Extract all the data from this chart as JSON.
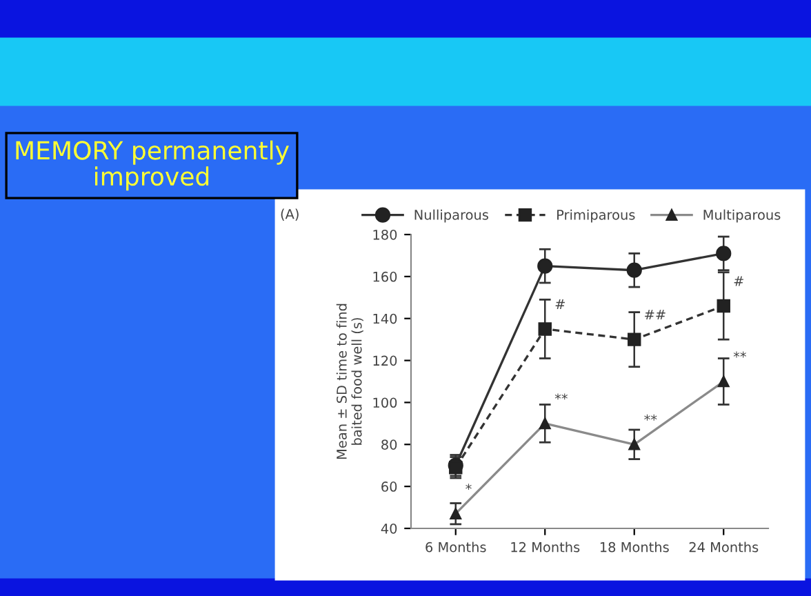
{
  "chart_data": {
    "type": "line",
    "title": "MEMORY permanently improved",
    "ylabel": "Mean ± SD time to find baited food well (s)",
    "categories": [
      "6 Months",
      "12 Months",
      "18 Months",
      "24 Months"
    ],
    "series": [
      {
        "name": "Nulliparous",
        "color": "#333333",
        "values": [
          70,
          165,
          163,
          171
        ],
        "errors": [
          5,
          8,
          8,
          8
        ],
        "marker": "circle",
        "line_style": "solid"
      },
      {
        "name": "Primiparous",
        "color": "#333333",
        "values": [
          69,
          135,
          130,
          146
        ],
        "errors": [
          5,
          14,
          13,
          16
        ],
        "marker": "square",
        "line_style": "dashed"
      },
      {
        "name": "Multiparous",
        "color": "#8a8a8a",
        "values": [
          47,
          90,
          80,
          110
        ],
        "errors": [
          5,
          9,
          7,
          11
        ],
        "marker": "triangle",
        "line_style": "solid"
      }
    ],
    "ylim": [
      40,
      180
    ],
    "yticks": [
      40,
      60,
      80,
      100,
      120,
      140,
      160,
      180
    ],
    "grid": false,
    "legend": "top",
    "annotations": [
      "(A)",
      {
        "text": "*",
        "x": "6 Months",
        "y": 47
      },
      {
        "text": "**",
        "x": "12 Months",
        "y": 90
      },
      {
        "text": "**",
        "x": "18 Months",
        "y": 80
      },
      {
        "text": "**",
        "x": "24 Months",
        "y": 110
      },
      {
        "text": "#",
        "x": "12 Months",
        "y": 135
      },
      {
        "text": "##",
        "x": "18 Months",
        "y": 130
      },
      {
        "text": "#",
        "x": "24 Months",
        "y": 146
      }
    ]
  }
}
